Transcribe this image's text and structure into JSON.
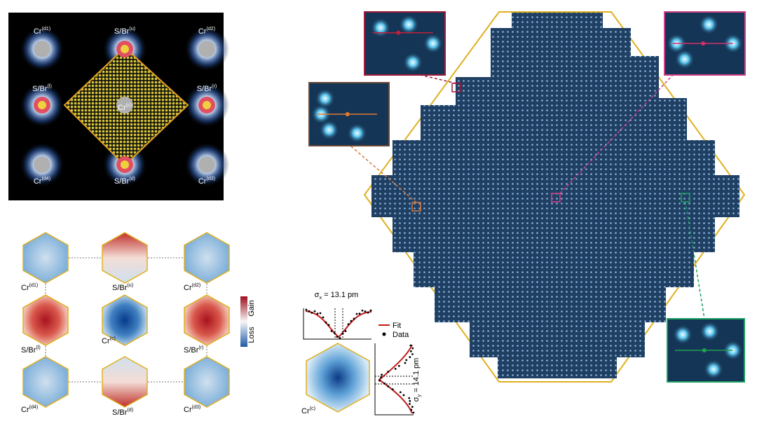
{
  "top_panel": {
    "labels": [
      {
        "base": "Cr",
        "sup": "(d1)"
      },
      {
        "base": "S/Br",
        "sup": "(u)"
      },
      {
        "base": "Cr",
        "sup": "(d2)"
      },
      {
        "base": "S/Br",
        "sup": "(l)"
      },
      {
        "base": "Cr",
        "sup": "(c)"
      },
      {
        "base": "S/Br",
        "sup": "(r)"
      },
      {
        "base": "Cr",
        "sup": "(d4)"
      },
      {
        "base": "S/Br",
        "sup": "(d)"
      },
      {
        "base": "Cr",
        "sup": "(d3)"
      }
    ]
  },
  "bottom_panel": {
    "labels": [
      {
        "base": "Cr",
        "sup": "(d1)"
      },
      {
        "base": "S/Br",
        "sup": "(u)"
      },
      {
        "base": "Cr",
        "sup": "(d2)"
      },
      {
        "base": "S/Br",
        "sup": "(l)"
      },
      {
        "base": "Cr",
        "sup": "(c)"
      },
      {
        "base": "S/Br",
        "sup": "(r)"
      },
      {
        "base": "Cr",
        "sup": "(d4)"
      },
      {
        "base": "S/Br",
        "sup": "(d)"
      },
      {
        "base": "Cr",
        "sup": "(d3)"
      }
    ],
    "colorbar": {
      "top": "Gain",
      "bottom": "Loss"
    }
  },
  "fit_panel": {
    "sigma_x": {
      "symbol": "σ",
      "sub": "x",
      "text": " = 13.1 pm"
    },
    "sigma_y": {
      "symbol": "σ",
      "sub": "y",
      "text": " = 14.1 pm"
    },
    "legend": [
      "Fit",
      "Data"
    ],
    "label": {
      "base": "Cr",
      "sup": "(c)"
    }
  }
}
